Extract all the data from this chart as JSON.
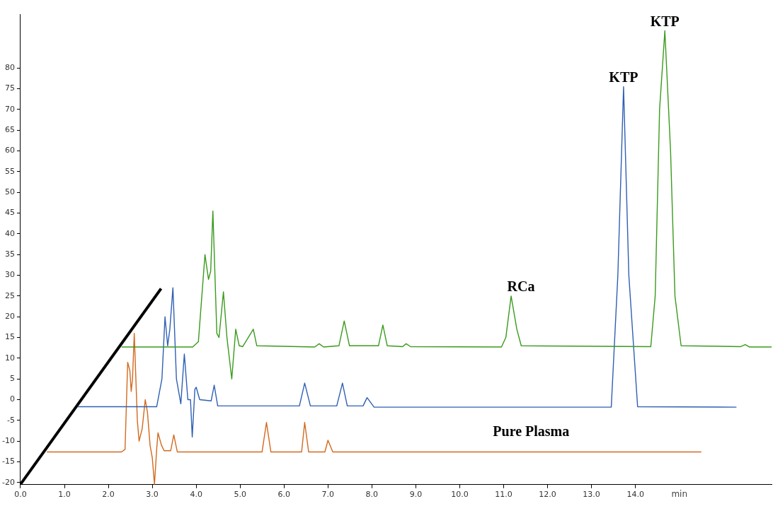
{
  "chart_data": {
    "type": "line",
    "xlabel": "min",
    "xlim": [
      0,
      17.1
    ],
    "ylim": [
      -20.5,
      93
    ],
    "xticks": [
      {
        "value": 0,
        "label": "0.0"
      },
      {
        "value": 1,
        "label": "1.0"
      },
      {
        "value": 2,
        "label": "2.0"
      },
      {
        "value": 3,
        "label": "3.0"
      },
      {
        "value": 4,
        "label": "4.0"
      },
      {
        "value": 5,
        "label": "5.0"
      },
      {
        "value": 6,
        "label": "6.0"
      },
      {
        "value": 7,
        "label": "7.0"
      },
      {
        "value": 8,
        "label": "8.0"
      },
      {
        "value": 9,
        "label": "9.0"
      },
      {
        "value": 10,
        "label": "10.0"
      },
      {
        "value": 11,
        "label": "11.0"
      },
      {
        "value": 12,
        "label": "12.0"
      },
      {
        "value": 13,
        "label": "13.0"
      },
      {
        "value": 14,
        "label": "14.0"
      }
    ],
    "yticks": [
      -20,
      -15,
      -10,
      -5,
      0,
      5,
      10,
      15,
      20,
      25,
      30,
      35,
      40,
      45,
      50,
      55,
      60,
      65,
      70,
      75,
      80
    ],
    "grid": false,
    "legend": false,
    "marker": "none",
    "line_style": "solid",
    "series": [
      {
        "color": "#3a9a1e",
        "x": [
          2.3,
          3.92,
          4.05,
          4.2,
          4.28,
          4.33,
          4.38,
          4.47,
          4.52,
          4.62,
          4.7,
          4.81,
          4.9,
          4.98,
          5.06,
          5.3,
          5.38,
          6.7,
          6.8,
          6.9,
          7.25,
          7.37,
          7.49,
          8.15,
          8.25,
          8.35,
          8.7,
          8.78,
          8.88,
          10.95,
          11.05,
          11.17,
          11.3,
          11.4,
          14.35,
          14.45,
          14.55,
          14.67,
          14.8,
          14.9,
          15.04,
          16.4,
          16.5,
          16.6,
          17.1
        ],
        "values": [
          12.7,
          12.7,
          14,
          35,
          29,
          31,
          45.5,
          16,
          15,
          26,
          15,
          5,
          17,
          13,
          12.8,
          17,
          13,
          12.7,
          13.5,
          12.7,
          13,
          19,
          13,
          13,
          18,
          13,
          12.8,
          13.5,
          12.8,
          12.7,
          15,
          25,
          17,
          13,
          12.8,
          25,
          70,
          89,
          60,
          25,
          13,
          12.8,
          13.3,
          12.7,
          12.7
        ]
      },
      {
        "color": "#2f5fb3",
        "x": [
          1.3,
          3.1,
          3.22,
          3.29,
          3.35,
          3.4,
          3.47,
          3.55,
          3.65,
          3.73,
          3.81,
          3.87,
          3.91,
          3.97,
          4.0,
          4.08,
          4.34,
          4.41,
          4.49,
          6.35,
          6.47,
          6.6,
          7.2,
          7.33,
          7.44,
          7.8,
          7.89,
          8.05,
          13.45,
          13.6,
          13.73,
          13.85,
          14.05,
          16.3
        ],
        "values": [
          -1.7,
          -1.7,
          5,
          20,
          13,
          17,
          27,
          5,
          -1,
          11,
          0,
          0,
          -9,
          2.5,
          3,
          0,
          -0.3,
          3.5,
          -1.5,
          -1.5,
          4,
          -1.5,
          -1.5,
          4,
          -1.5,
          -1.5,
          0.5,
          -1.8,
          -1.8,
          30,
          75.5,
          30,
          -1.7,
          -1.8
        ]
      },
      {
        "name": "Pure Plasma",
        "color": "#d2691e",
        "x": [
          0.6,
          2.3,
          2.38,
          2.44,
          2.49,
          2.52,
          2.55,
          2.59,
          2.66,
          2.7,
          2.77,
          2.84,
          2.89,
          2.95,
          3.0,
          3.05,
          3.1,
          3.13,
          3.21,
          3.27,
          3.42,
          3.49,
          3.57,
          5.5,
          5.6,
          5.7,
          6.4,
          6.47,
          6.56,
          6.93,
          7.0,
          7.11,
          15.5
        ],
        "values": [
          -12.6,
          -12.6,
          -12,
          9,
          7,
          2,
          5,
          16,
          -5,
          -10,
          -7,
          0,
          -3,
          -11,
          -14,
          -20.4,
          -12,
          -8,
          -11,
          -12.3,
          -12.3,
          -8.5,
          -12.6,
          -12.6,
          -5.5,
          -12.6,
          -12.6,
          -5.5,
          -12.6,
          -12.6,
          -9.8,
          -12.6,
          -12.6
        ]
      },
      {
        "color": "#000000",
        "x": [
          0,
          3.2
        ],
        "values": [
          -20.4,
          26.8
        ]
      }
    ],
    "annotations": [
      {
        "text": "KTP",
        "x": 14.67,
        "y": 89
      },
      {
        "text": "KTP",
        "x": 13.73,
        "y": 75.5
      },
      {
        "text": "RCa",
        "x": 11.17,
        "y": 25
      }
    ]
  }
}
